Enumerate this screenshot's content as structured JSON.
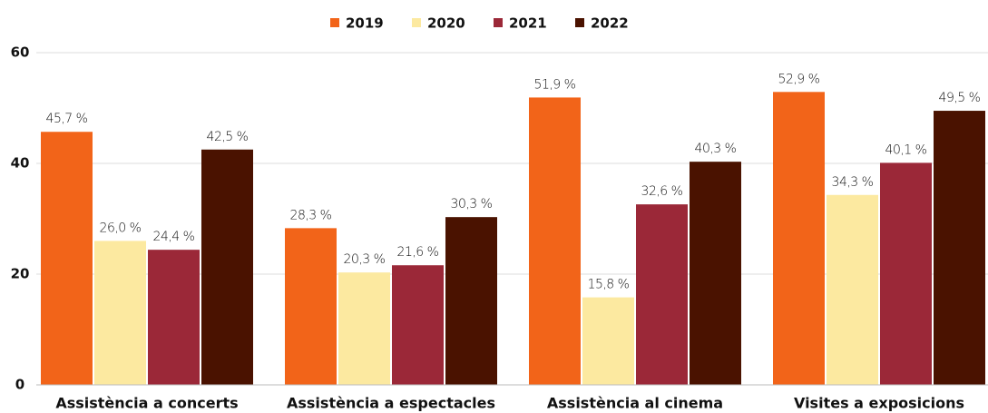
{
  "chart_data": {
    "type": "bar",
    "categories": [
      "Assistència a concerts",
      "Assistència a espectacles",
      "Assistència al cinema",
      "Visites a exposicions"
    ],
    "series": [
      {
        "name": "2019",
        "color": "#f26419",
        "values": [
          45.7,
          28.3,
          51.9,
          52.9
        ],
        "value_labels": [
          "45,7 %",
          "28,3 %",
          "51,9 %",
          "52,9 %"
        ]
      },
      {
        "name": "2020",
        "color": "#fce9a0",
        "values": [
          26.0,
          20.3,
          15.8,
          34.3
        ],
        "value_labels": [
          "26,0 %",
          "20,3 %",
          "15,8 %",
          "34,3 %"
        ]
      },
      {
        "name": "2021",
        "color": "#9b2838",
        "values": [
          24.4,
          21.6,
          32.6,
          40.1
        ],
        "value_labels": [
          "24,4 %",
          "21,6 %",
          "32,6 %",
          "40,1 %"
        ]
      },
      {
        "name": "2022",
        "color": "#4a1200",
        "values": [
          42.5,
          30.3,
          40.3,
          49.5
        ],
        "value_labels": [
          "42,5 %",
          "30,3 %",
          "40,3 %",
          "49,5 %"
        ]
      }
    ],
    "ylim": [
      0,
      60
    ],
    "yticks": [
      0,
      20,
      40,
      60
    ],
    "grid": true,
    "legend": "top"
  }
}
